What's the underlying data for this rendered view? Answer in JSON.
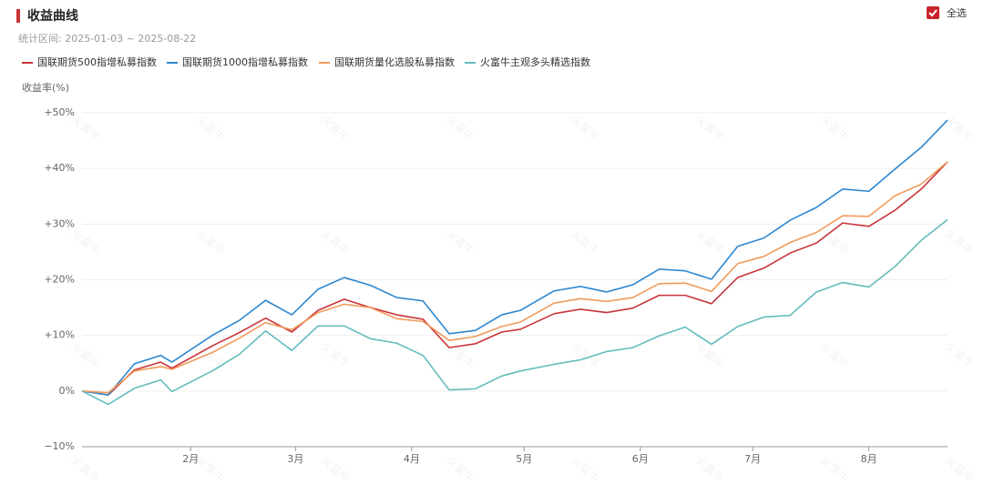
{
  "header": {
    "title": "收益曲线",
    "subtitle": "统计区间: 2025-01-03 ~ 2025-08-22",
    "select_all": "全选"
  },
  "watermark": "火富牛",
  "chart_data": {
    "type": "line",
    "y_label": "收益率(%)",
    "x": [
      0,
      7,
      14,
      21,
      24,
      35,
      42,
      49,
      56,
      63,
      70,
      77,
      84,
      91,
      98,
      105,
      112,
      117,
      126,
      133,
      140,
      147,
      154,
      161,
      168,
      175,
      182,
      189,
      196,
      203,
      210,
      217,
      224,
      231
    ],
    "xlim": [
      0,
      231
    ],
    "xticks": [
      {
        "value": 29,
        "label": "2月"
      },
      {
        "value": 57,
        "label": "3月"
      },
      {
        "value": 88,
        "label": "4月"
      },
      {
        "value": 118,
        "label": "5月"
      },
      {
        "value": 149,
        "label": "6月"
      },
      {
        "value": 179,
        "label": "7月"
      },
      {
        "value": 210,
        "label": "8月"
      }
    ],
    "ylim": [
      -10,
      50
    ],
    "yticks": [
      {
        "value": -10,
        "label": "−10%"
      },
      {
        "value": 0,
        "label": "0%"
      },
      {
        "value": 10,
        "label": "+10%"
      },
      {
        "value": 20,
        "label": "+20%"
      },
      {
        "value": 30,
        "label": "+30%"
      },
      {
        "value": 40,
        "label": "+40%"
      },
      {
        "value": 50,
        "label": "+50%"
      }
    ],
    "grid": true,
    "series": [
      {
        "name": "国联期货500指增私募指数",
        "color": "#c8343a",
        "values": [
          0,
          -0.7,
          3.8,
          5.2,
          4.1,
          8.2,
          10.5,
          13.1,
          10.6,
          14.5,
          16.5,
          15.0,
          13.7,
          12.9,
          7.8,
          8.5,
          10.6,
          11.1,
          13.9,
          14.7,
          14.1,
          14.9,
          17.2,
          17.2,
          15.7,
          20.4,
          22.1,
          24.8,
          26.6,
          30.2,
          29.6,
          32.5,
          36.3,
          41.2
        ]
      },
      {
        "name": "国联期货1000指增私募指数",
        "color": "#2d87d0",
        "values": [
          0,
          -0.7,
          4.9,
          6.4,
          5.2,
          10.1,
          12.7,
          16.3,
          13.7,
          18.3,
          20.4,
          19.0,
          16.8,
          16.2,
          10.3,
          10.9,
          13.7,
          14.5,
          18.0,
          18.8,
          17.8,
          19.1,
          21.9,
          21.6,
          20.1,
          26.0,
          27.5,
          30.7,
          33.0,
          36.3,
          35.9,
          39.9,
          43.8,
          48.7
        ]
      },
      {
        "name": "国联期货量化选股私募指数",
        "color": "#f09a5a",
        "values": [
          0,
          -0.3,
          3.6,
          4.4,
          3.9,
          7.0,
          9.5,
          12.3,
          11.0,
          14.1,
          15.6,
          15.0,
          13.0,
          12.5,
          9.1,
          9.8,
          11.6,
          12.4,
          15.8,
          16.6,
          16.1,
          16.8,
          19.3,
          19.4,
          17.9,
          22.9,
          24.2,
          26.7,
          28.5,
          31.5,
          31.4,
          35.1,
          37.2,
          41.2
        ]
      },
      {
        "name": "火富牛主观多头精选指数",
        "color": "#64bcbc",
        "values": [
          0,
          -2.4,
          0.5,
          2.0,
          -0.1,
          3.7,
          6.6,
          10.8,
          7.3,
          11.7,
          11.7,
          9.4,
          8.6,
          6.4,
          0.2,
          0.4,
          2.7,
          3.6,
          4.8,
          5.6,
          7.1,
          7.8,
          9.9,
          11.5,
          8.4,
          11.6,
          13.3,
          13.6,
          17.8,
          19.5,
          18.7,
          22.4,
          27.1,
          30.8
        ]
      }
    ]
  }
}
